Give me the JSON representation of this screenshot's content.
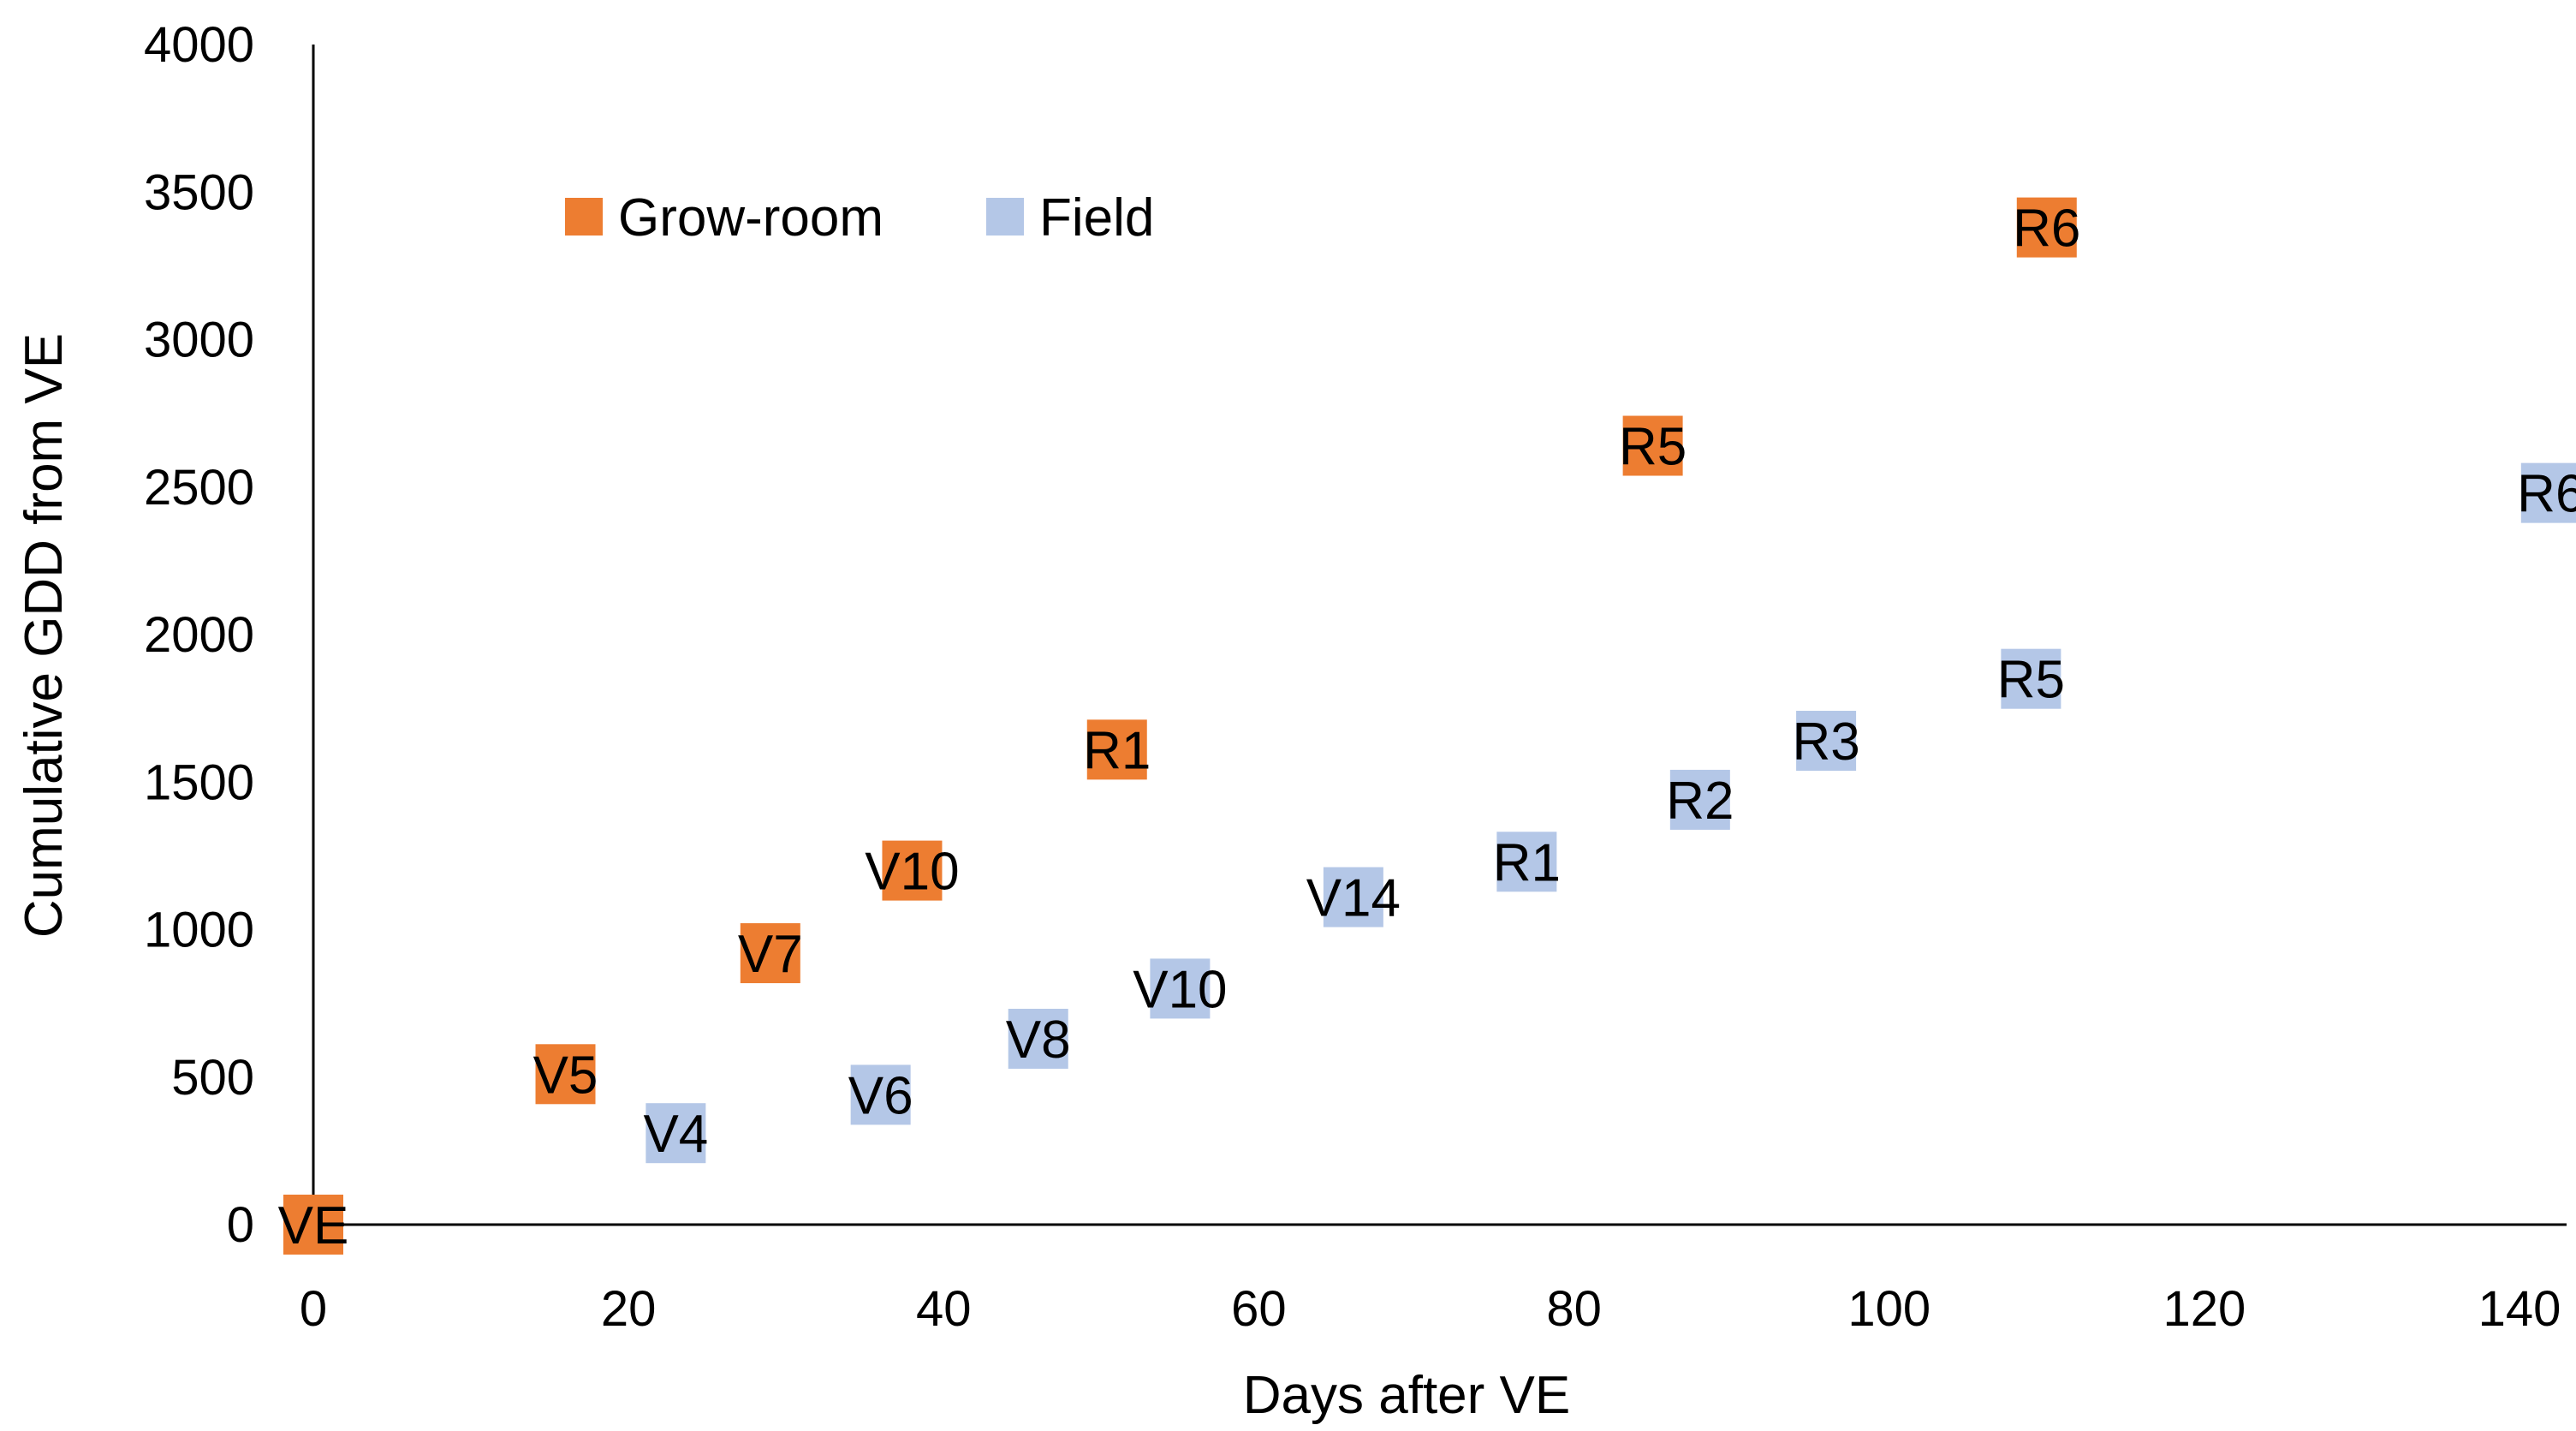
{
  "chart_data": {
    "type": "scatter",
    "title": "",
    "xlabel": "Days after VE",
    "ylabel": "Cumulative GDD from VE",
    "xlim": [
      0,
      140
    ],
    "ylim": [
      0,
      4000
    ],
    "xticks": [
      0,
      20,
      40,
      60,
      80,
      100,
      120,
      140
    ],
    "yticks": [
      0,
      500,
      1000,
      1500,
      2000,
      2500,
      3000,
      3500,
      4000
    ],
    "grid": false,
    "legend_position": "top-left",
    "series": [
      {
        "name": "Grow-room",
        "color": "#ED7D31",
        "points": [
          {
            "label": "VE",
            "x": 0,
            "y": 0
          },
          {
            "label": "V5",
            "x": 16,
            "y": 510
          },
          {
            "label": "V7",
            "x": 29,
            "y": 920
          },
          {
            "label": "V10",
            "x": 38,
            "y": 1200
          },
          {
            "label": "R1",
            "x": 51,
            "y": 1610
          },
          {
            "label": "R5",
            "x": 85,
            "y": 2640
          },
          {
            "label": "R6",
            "x": 110,
            "y": 3380
          }
        ]
      },
      {
        "name": "Field",
        "color": "#B4C7E7",
        "points": [
          {
            "label": "V4",
            "x": 23,
            "y": 310
          },
          {
            "label": "V6",
            "x": 36,
            "y": 440
          },
          {
            "label": "V8",
            "x": 46,
            "y": 630
          },
          {
            "label": "V10",
            "x": 55,
            "y": 800
          },
          {
            "label": "V14",
            "x": 66,
            "y": 1110
          },
          {
            "label": "R1",
            "x": 77,
            "y": 1230
          },
          {
            "label": "R2",
            "x": 88,
            "y": 1440
          },
          {
            "label": "R3",
            "x": 96,
            "y": 1640
          },
          {
            "label": "R5",
            "x": 109,
            "y": 1850
          },
          {
            "label": "R6",
            "x": 142,
            "y": 2480
          }
        ]
      }
    ]
  }
}
